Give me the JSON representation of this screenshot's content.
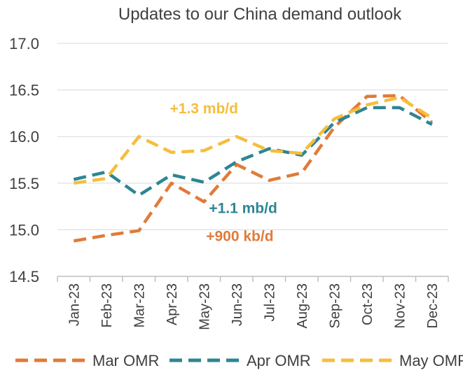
{
  "chart_data": {
    "type": "line",
    "title": "Updates to our China demand outlook",
    "categories": [
      "Jan-23",
      "Feb-23",
      "Mar-23",
      "Apr-23",
      "May-23",
      "Jun-23",
      "Jul-23",
      "Aug-23",
      "Sep-23",
      "Oct-23",
      "Nov-23",
      "Dec-23"
    ],
    "ylim": [
      14.5,
      17.0
    ],
    "yticks": [
      "14.5",
      "15.0",
      "15.5",
      "16.0",
      "16.5",
      "17.0"
    ],
    "xlabel": "",
    "ylabel": "",
    "grid": true,
    "legend_position": "bottom",
    "series": [
      {
        "name": "Mar OMR",
        "color": "#E07B39",
        "dashed": true,
        "values": [
          14.88,
          14.94,
          14.99,
          15.5,
          15.3,
          15.7,
          15.53,
          15.61,
          16.1,
          16.43,
          16.44,
          16.15
        ]
      },
      {
        "name": "Apr OMR",
        "color": "#2E8593",
        "dashed": true,
        "values": [
          15.54,
          15.62,
          15.37,
          15.59,
          15.51,
          15.73,
          15.87,
          15.8,
          16.15,
          16.31,
          16.31,
          16.13
        ]
      },
      {
        "name": "May OMR",
        "color": "#F5BE3C",
        "dashed": true,
        "values": [
          15.5,
          15.55,
          16.0,
          15.83,
          15.85,
          16.0,
          15.85,
          15.82,
          16.19,
          16.34,
          16.42,
          16.2
        ]
      }
    ],
    "annotations": [
      {
        "text": "+1.3 mb/d",
        "color": "#F5BE3C",
        "x": 4,
        "y": 16.25
      },
      {
        "text": "+1.1 mb/d",
        "color": "#2E8593",
        "x": 5.2,
        "y": 15.18
      },
      {
        "text": "+900 kb/d",
        "color": "#E07B39",
        "x": 5.1,
        "y": 14.88
      }
    ]
  }
}
